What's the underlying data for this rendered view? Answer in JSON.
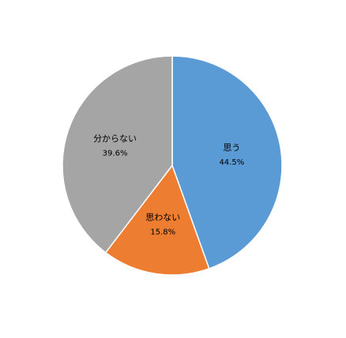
{
  "chart_data": {
    "type": "pie",
    "categories": [
      "思う",
      "思わない",
      "分からない"
    ],
    "values": [
      44.5,
      15.8,
      39.6
    ],
    "value_labels": [
      "44.5%",
      "15.8%",
      "39.6%"
    ],
    "colors": [
      "#5b9bd5",
      "#ed7d31",
      "#a5a5a5"
    ]
  }
}
